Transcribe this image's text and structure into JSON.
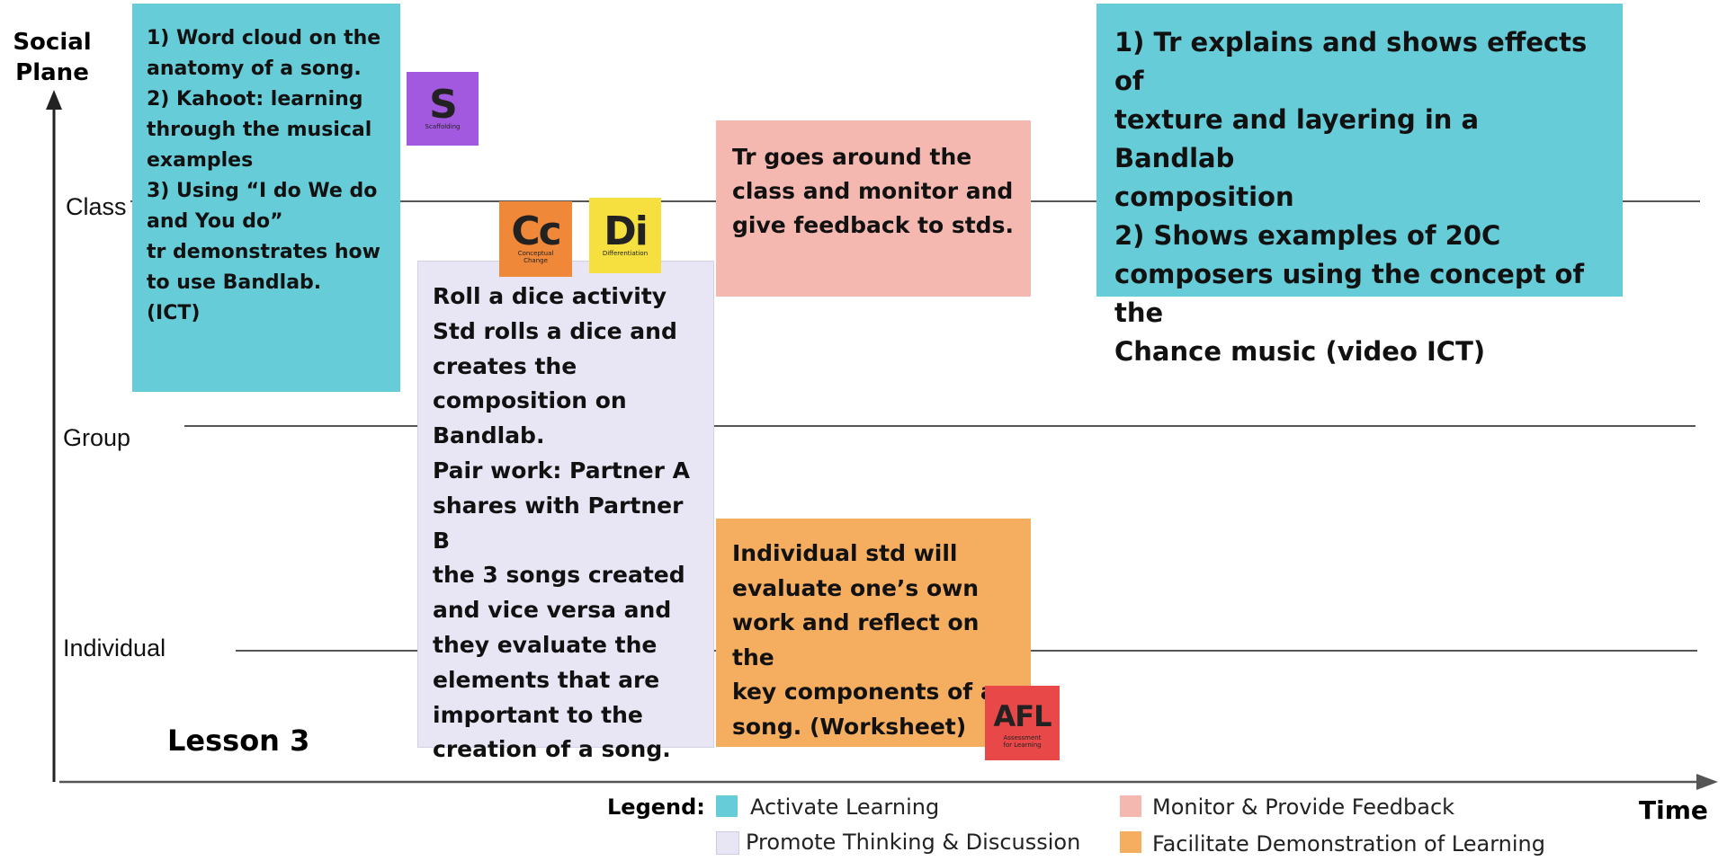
{
  "axes": {
    "y_title": "Social\nPlane",
    "x_title": "Time"
  },
  "planes": {
    "class": "Class",
    "group": "Group",
    "individual": "Individual"
  },
  "lesson_title": "Lesson 3",
  "notes": {
    "activate_1": "1) Word  cloud on the\nanatomy of a song.\n2) Kahoot: learning\nthrough the musical\nexamples\n3) Using “I do We do\nand You do”\ntr demonstrates how\nto use Bandlab.\n(ICT)",
    "thinking": "Roll a dice activity\nStd rolls a dice and\ncreates the\ncomposition on\nBandlab.\nPair work: Partner A\nshares with Partner B\nthe 3 songs created\nand vice versa and\nthey  evaluate the\nelements that are\nimportant to the\ncreation of a song.",
    "monitor": "Tr goes around the\nclass and monitor and\ngive feedback to stds.",
    "demonstrate": "Individual std will\nevaluate one’s own\nwork and reflect on the\nkey components  of a\nsong.  (Worksheet)",
    "activate_2": "1) Tr explains and shows effects of\ntexture and layering in a Bandlab\ncomposition\n2) Shows examples of 20C\ncomposers using the concept of the\nChance music (video ICT)"
  },
  "badges": {
    "scaffolding": {
      "letters": "S",
      "caption": "Scaffolding",
      "color": "#a259e0"
    },
    "conceptual": {
      "letters": "Cc",
      "caption": "Conceptual\nChange",
      "color": "#f0883a"
    },
    "differentiation": {
      "letters": "Di",
      "caption": "Differentiation",
      "color": "#f5e040"
    },
    "afl": {
      "letters": "AFL",
      "caption": "Assessment\nfor Learning",
      "color": "#e84848"
    }
  },
  "legend": {
    "title": "Legend:",
    "items": [
      {
        "label": "Activate Learning",
        "color": "#66cdd8"
      },
      {
        "label": "Promote Thinking & Discussion",
        "color": "#e8e6f4"
      },
      {
        "label": "Monitor & Provide Feedback",
        "color": "#f4b8b0"
      },
      {
        "label": "Facilitate Demonstration of Learning",
        "color": "#f5ad60"
      }
    ]
  },
  "colors": {
    "activate": "#66cdd8",
    "thinking": "#e8e6f4",
    "monitor": "#f4b8b0",
    "demonstrate": "#f5ad60"
  }
}
